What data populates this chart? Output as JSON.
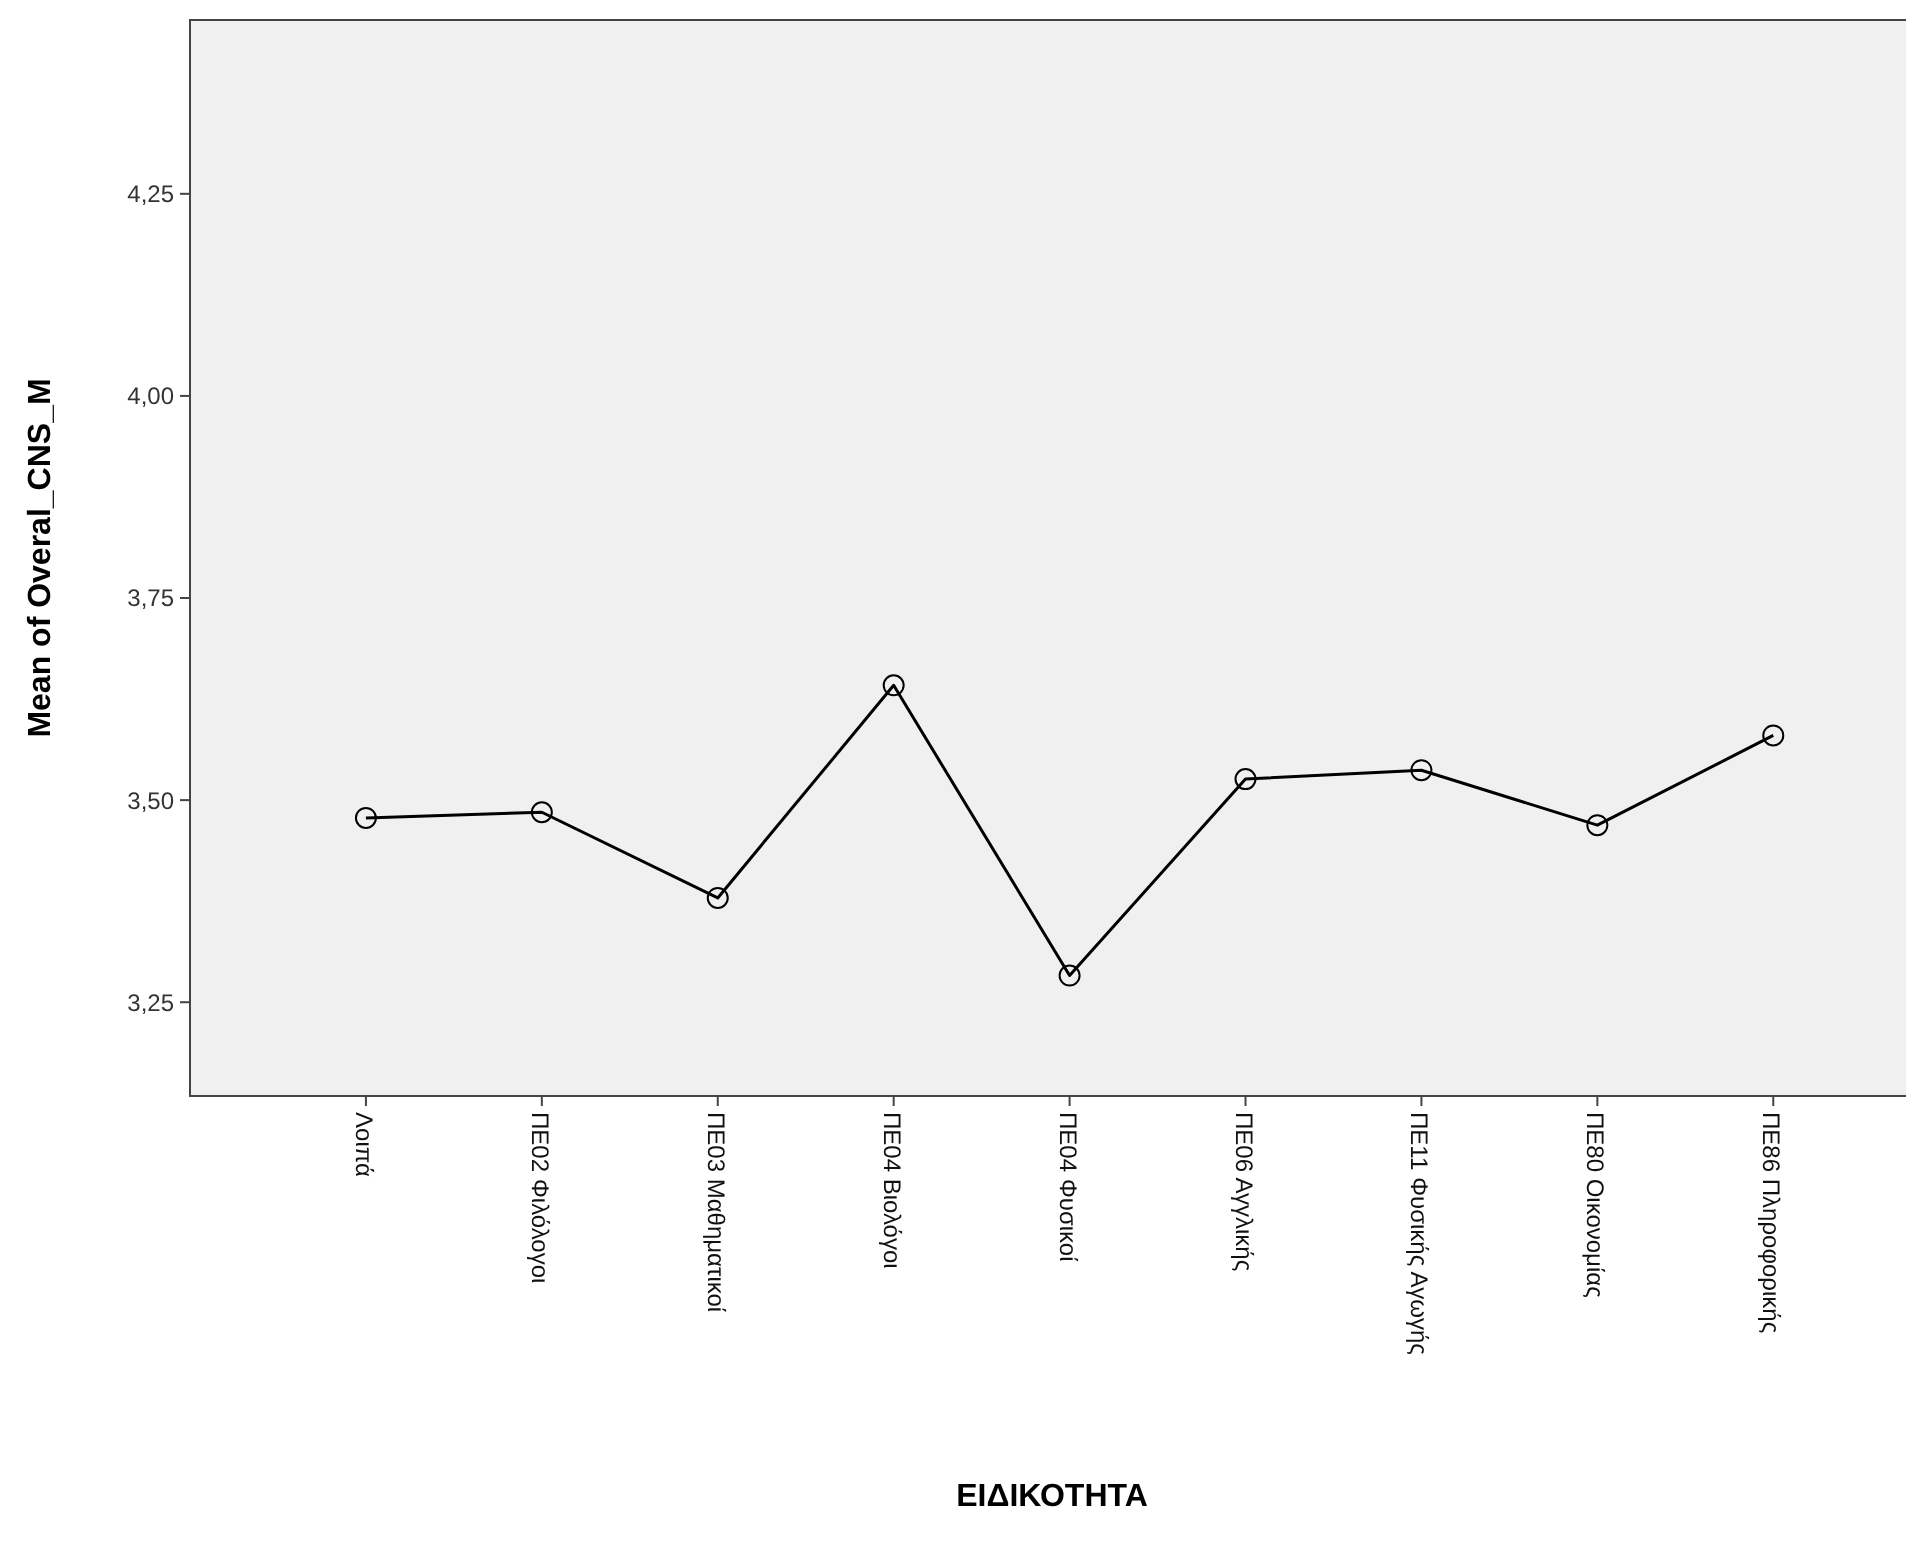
{
  "chart_data": {
    "type": "line",
    "xlabel": "ΕΙΔΙΚΟΤΗΤΑ",
    "ylabel": "Mean of Overal_CNS_M",
    "categories": [
      "Λοιπά",
      "ΠΕ02 Φιλόλογοι",
      "ΠΕ03 Μαθηματικοί",
      "ΠΕ04 Βιολόγοι",
      "ΠΕ04 Φυσικοί",
      "ΠΕ06 Αγγλικής",
      "ΠΕ11 Φυσικής Αγωγής",
      "ΠΕ80 Οικονομίας",
      "ΠΕ86 Πληροφορικής"
    ],
    "series": [
      {
        "color": "#000000",
        "values": [
          3.478,
          3.485,
          3.379,
          3.642,
          3.283,
          3.526,
          3.537,
          3.469,
          3.58
        ]
      }
    ],
    "ylim": [
      3.134,
      4.465
    ],
    "yticks": [
      {
        "value": 3.25,
        "label": "3,25"
      },
      {
        "value": 3.5,
        "label": "3,50"
      },
      {
        "value": 3.75,
        "label": "3,75"
      },
      {
        "value": 4.0,
        "label": "4,00"
      },
      {
        "value": 4.25,
        "label": "4,25"
      }
    ],
    "marker": "circle"
  }
}
